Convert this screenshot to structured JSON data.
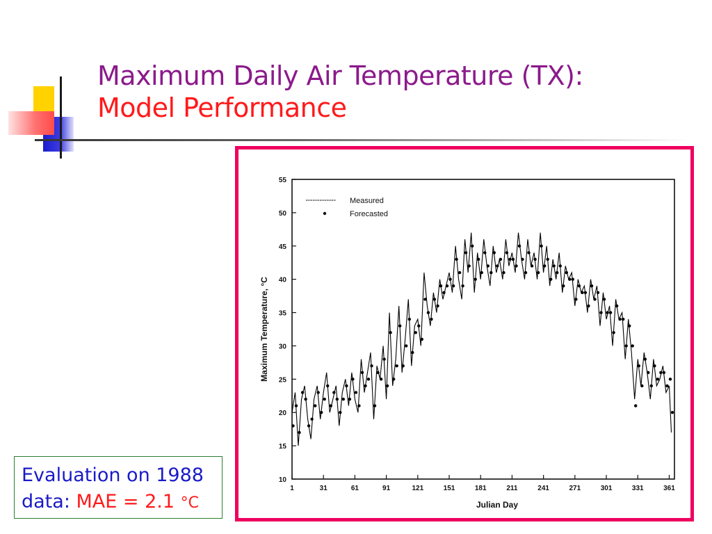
{
  "slide": {
    "title_line1": "Maximum Daily Air Temperature (TX):",
    "title_line2": "Model Performance",
    "eval_line1": "Evaluation on 1988",
    "eval_line2_prefix": "data: ",
    "eval_mae_label": "MAE = 2.1 ",
    "eval_mae_unit": "°C",
    "colors": {
      "title_purple": "#8b1a8b",
      "title_red": "#ff1a1a",
      "frame_pink": "#f0005f",
      "eval_blue": "#1a1ac8"
    }
  },
  "chart_data": {
    "type": "line",
    "xlabel": "Julian Day",
    "ylabel": "Maximum Temperature, °C",
    "xlim": [
      1,
      366
    ],
    "ylim": [
      10,
      55
    ],
    "xticks": [
      1,
      31,
      61,
      91,
      121,
      151,
      181,
      211,
      241,
      271,
      301,
      331,
      361
    ],
    "yticks": [
      10,
      15,
      20,
      25,
      30,
      35,
      40,
      45,
      50,
      55
    ],
    "grid": false,
    "legend_position": "top-left",
    "series": [
      {
        "name": "Measured",
        "style": "line",
        "x": [
          1,
          4,
          7,
          10,
          13,
          16,
          19,
          22,
          25,
          28,
          31,
          34,
          37,
          40,
          43,
          46,
          49,
          52,
          55,
          58,
          61,
          64,
          67,
          70,
          73,
          76,
          79,
          82,
          85,
          88,
          91,
          94,
          97,
          100,
          103,
          106,
          109,
          112,
          115,
          118,
          121,
          124,
          127,
          130,
          133,
          136,
          139,
          142,
          145,
          148,
          151,
          154,
          157,
          160,
          163,
          166,
          169,
          172,
          175,
          178,
          181,
          184,
          187,
          190,
          193,
          196,
          199,
          202,
          205,
          208,
          211,
          214,
          217,
          220,
          223,
          226,
          229,
          232,
          235,
          238,
          241,
          244,
          247,
          250,
          253,
          256,
          259,
          262,
          265,
          268,
          271,
          274,
          277,
          280,
          283,
          286,
          289,
          292,
          295,
          298,
          301,
          304,
          307,
          310,
          313,
          316,
          319,
          322,
          325,
          328,
          331,
          334,
          337,
          340,
          343,
          346,
          349,
          352,
          355,
          358,
          361,
          363
        ],
        "y": [
          20,
          23,
          15,
          22,
          24,
          19,
          16,
          22,
          24,
          19,
          23,
          26,
          20,
          22,
          24,
          18,
          23,
          25,
          21,
          26,
          22,
          20,
          28,
          23,
          26,
          29,
          19,
          27,
          25,
          30,
          22,
          35,
          24,
          28,
          36,
          26,
          31,
          37,
          27,
          33,
          34,
          30,
          41,
          36,
          33,
          38,
          35,
          40,
          37,
          39,
          41,
          38,
          45,
          40,
          37,
          46,
          41,
          47,
          38,
          44,
          40,
          46,
          42,
          39,
          45,
          41,
          43,
          40,
          46,
          42,
          44,
          41,
          47,
          43,
          40,
          46,
          42,
          44,
          40,
          47,
          41,
          45,
          39,
          43,
          40,
          44,
          38,
          42,
          40,
          41,
          36,
          40,
          38,
          39,
          35,
          40,
          37,
          39,
          33,
          38,
          34,
          36,
          30,
          37,
          34,
          35,
          28,
          34,
          29,
          22,
          28,
          24,
          29,
          26,
          22,
          28,
          24,
          25,
          27,
          23,
          24,
          17
        ],
        "color": "#000000"
      },
      {
        "name": "Forecasted",
        "style": "dots",
        "x": [
          2,
          5,
          8,
          11,
          14,
          17,
          20,
          23,
          26,
          29,
          32,
          35,
          38,
          41,
          44,
          47,
          50,
          53,
          56,
          59,
          62,
          65,
          68,
          71,
          74,
          77,
          80,
          83,
          86,
          89,
          92,
          95,
          98,
          101,
          104,
          107,
          110,
          113,
          116,
          119,
          122,
          125,
          128,
          131,
          134,
          137,
          140,
          143,
          146,
          149,
          152,
          155,
          158,
          161,
          164,
          167,
          170,
          173,
          176,
          179,
          182,
          185,
          188,
          191,
          194,
          197,
          200,
          203,
          206,
          209,
          212,
          215,
          218,
          221,
          224,
          227,
          230,
          233,
          236,
          239,
          242,
          245,
          248,
          251,
          254,
          257,
          260,
          263,
          266,
          269,
          272,
          275,
          278,
          281,
          284,
          287,
          290,
          293,
          296,
          299,
          302,
          305,
          308,
          311,
          314,
          317,
          320,
          323,
          326,
          329,
          332,
          335,
          338,
          341,
          344,
          347,
          350,
          353,
          356,
          359,
          362,
          364
        ],
        "y": [
          18,
          21,
          17,
          23,
          22,
          18,
          19,
          21,
          23,
          20,
          22,
          24,
          21,
          23,
          22,
          20,
          22,
          24,
          22,
          25,
          23,
          21,
          26,
          24,
          25,
          27,
          21,
          26,
          25,
          28,
          24,
          32,
          25,
          27,
          33,
          27,
          30,
          34,
          29,
          32,
          33,
          31,
          37,
          35,
          34,
          37,
          36,
          39,
          38,
          39,
          40,
          39,
          43,
          41,
          39,
          44,
          42,
          45,
          40,
          43,
          41,
          44,
          42,
          41,
          44,
          42,
          43,
          41,
          44,
          43,
          43,
          42,
          45,
          43,
          41,
          44,
          42,
          43,
          41,
          45,
          42,
          43,
          40,
          42,
          41,
          42,
          39,
          41,
          40,
          40,
          37,
          39,
          38,
          38,
          36,
          39,
          37,
          38,
          35,
          37,
          35,
          35,
          32,
          36,
          34,
          34,
          30,
          33,
          30,
          21,
          27,
          24,
          28,
          26,
          24,
          27,
          25,
          26,
          26,
          24,
          25,
          20
        ],
        "color": "#000000"
      }
    ]
  }
}
